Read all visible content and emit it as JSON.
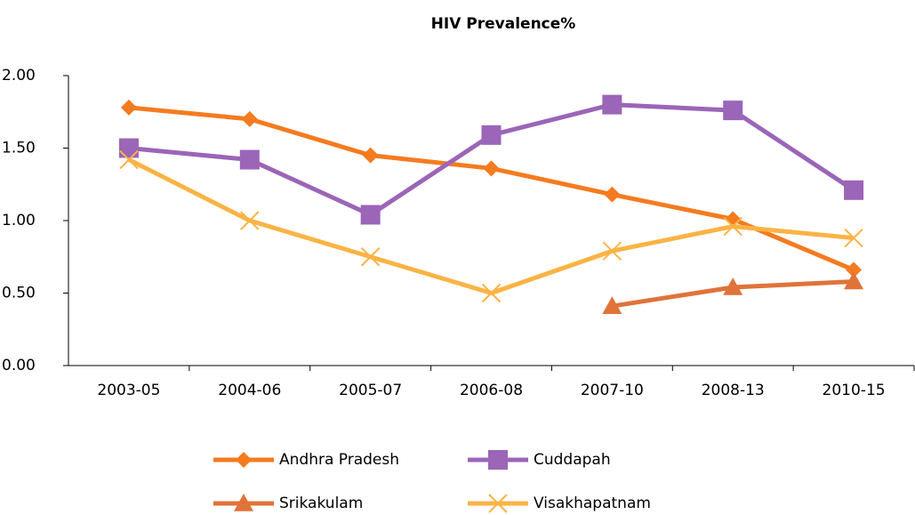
{
  "chart_data": {
    "type": "line",
    "title": "HIV Prevalence%",
    "categories": [
      "2003-05",
      "2004-06",
      "2005-07",
      "2006-08",
      "2007-10",
      "2008-13",
      "2010-15"
    ],
    "series": [
      {
        "name": "Andhra Pradesh",
        "color": "#f47b20",
        "marker": "diamond",
        "values": [
          1.78,
          1.7,
          1.45,
          1.36,
          1.18,
          1.01,
          0.66
        ]
      },
      {
        "name": "Cuddapah",
        "color": "#9b65b8",
        "marker": "square",
        "values": [
          1.5,
          1.42,
          1.04,
          1.59,
          1.8,
          1.76,
          1.21
        ]
      },
      {
        "name": "Srikakulam",
        "color": "#e0733a",
        "marker": "triangle",
        "values": [
          null,
          null,
          null,
          null,
          0.41,
          0.54,
          0.58
        ]
      },
      {
        "name": "Visakhapatnam",
        "color": "#fbb345",
        "marker": "x",
        "values": [
          1.42,
          1.0,
          0.75,
          0.5,
          0.79,
          0.96,
          0.88
        ]
      }
    ],
    "ylim": [
      0,
      2
    ],
    "yticks": [
      {
        "value": 0,
        "label": "0.00"
      },
      {
        "value": 0.5,
        "label": "0.50"
      },
      {
        "value": 1,
        "label": "1.00"
      },
      {
        "value": 1.5,
        "label": "1.50"
      },
      {
        "value": 2,
        "label": "2.00"
      }
    ],
    "grid": false,
    "legend": "bottom"
  }
}
